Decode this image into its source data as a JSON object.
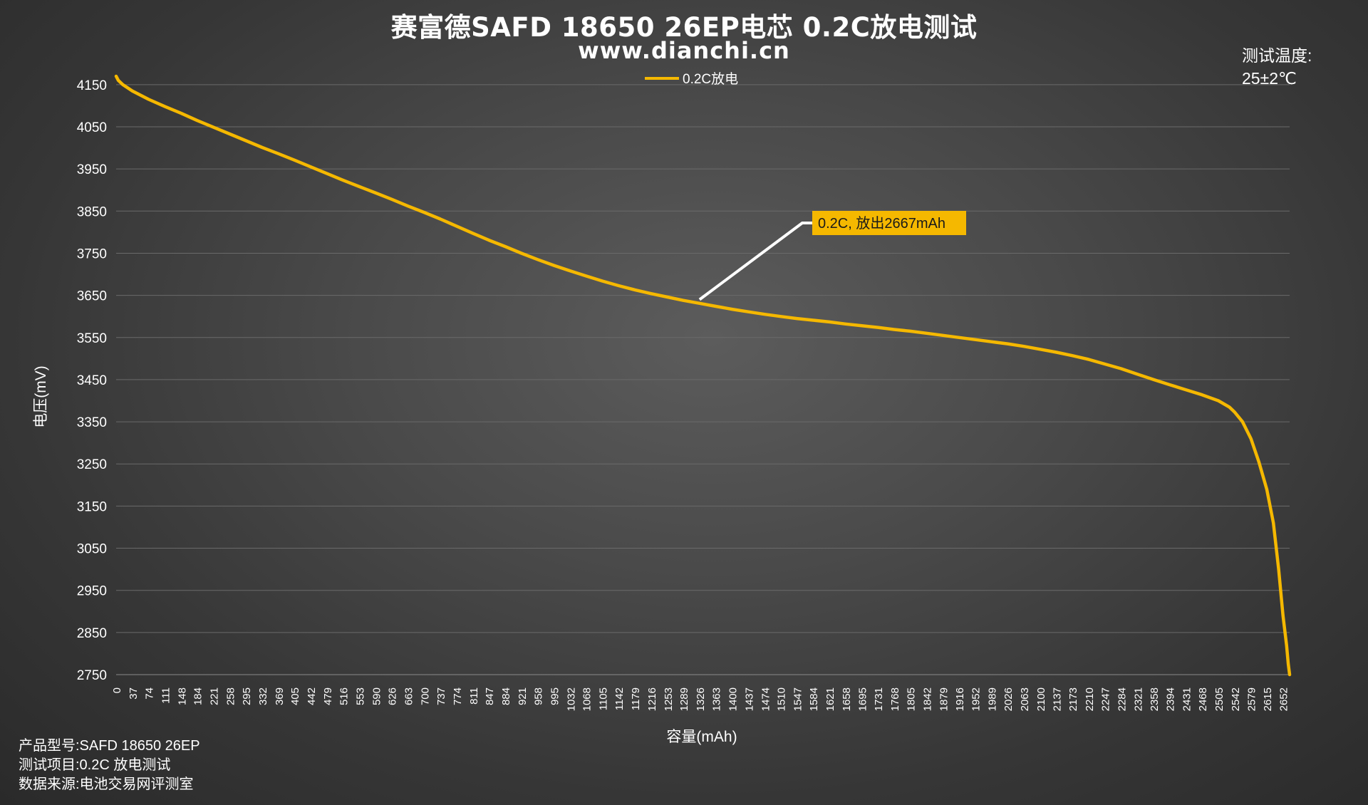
{
  "header": {
    "title": "赛富德SAFD 18650 26EP电芯 0.2C放电测试",
    "subtitle": "www.dianchi.cn"
  },
  "temperature": {
    "label": "测试温度:",
    "value": "25±2℃"
  },
  "footer": {
    "product": "产品型号:SAFD 18650 26EP",
    "item": "测试项目:0.2C 放电测试",
    "source": "数据来源:电池交易网评测室"
  },
  "colors": {
    "series": "#f5b800",
    "grid": "#6a6a6a",
    "leader": "#ffffff",
    "annotation_bg": "#f5b800",
    "annotation_text": "#1a1a1a"
  },
  "chart_data": {
    "type": "line",
    "xlabel": "容量(mAh)",
    "ylabel": "电压(mV)",
    "ylim": [
      2750,
      4170
    ],
    "xlim": [
      0,
      2667
    ],
    "grid": "horizontal",
    "legend": {
      "position": "top-center",
      "entries": [
        "0.2C放电"
      ]
    },
    "yticks": [
      2750,
      2850,
      2950,
      3050,
      3150,
      3250,
      3350,
      3450,
      3550,
      3650,
      3750,
      3850,
      3950,
      4050,
      4150
    ],
    "xticks": [
      0,
      37,
      74,
      111,
      148,
      184,
      221,
      258,
      295,
      332,
      369,
      405,
      442,
      479,
      516,
      553,
      590,
      626,
      663,
      700,
      737,
      774,
      811,
      847,
      884,
      921,
      958,
      995,
      1032,
      1068,
      1105,
      1142,
      1179,
      1216,
      1253,
      1289,
      1326,
      1363,
      1400,
      1437,
      1474,
      1510,
      1547,
      1584,
      1621,
      1658,
      1695,
      1731,
      1768,
      1805,
      1842,
      1879,
      1916,
      1952,
      1989,
      2026,
      2063,
      2100,
      2137,
      2173,
      2210,
      2247,
      2284,
      2321,
      2358,
      2394,
      2431,
      2468,
      2505,
      2542,
      2579,
      2615,
      2652
    ],
    "series": [
      {
        "name": "0.2C放电",
        "x": [
          0,
          5,
          15,
          37,
          74,
          111,
          148,
          184,
          221,
          258,
          295,
          332,
          369,
          405,
          442,
          479,
          516,
          553,
          590,
          626,
          663,
          700,
          737,
          774,
          811,
          847,
          884,
          921,
          958,
          995,
          1032,
          1068,
          1105,
          1142,
          1179,
          1216,
          1253,
          1289,
          1326,
          1363,
          1400,
          1437,
          1474,
          1510,
          1547,
          1584,
          1621,
          1658,
          1695,
          1731,
          1768,
          1805,
          1842,
          1879,
          1916,
          1952,
          1989,
          2026,
          2063,
          2100,
          2137,
          2173,
          2210,
          2247,
          2284,
          2321,
          2358,
          2394,
          2431,
          2468,
          2505,
          2530,
          2542,
          2560,
          2579,
          2597,
          2615,
          2630,
          2642,
          2652,
          2660,
          2664,
          2667
        ],
        "y": [
          4170,
          4160,
          4150,
          4135,
          4115,
          4098,
          4082,
          4065,
          4049,
          4033,
          4017,
          4001,
          3986,
          3971,
          3955,
          3939,
          3923,
          3908,
          3893,
          3878,
          3862,
          3847,
          3831,
          3814,
          3797,
          3781,
          3766,
          3750,
          3735,
          3721,
          3708,
          3696,
          3684,
          3673,
          3663,
          3654,
          3646,
          3638,
          3631,
          3624,
          3617,
          3611,
          3605,
          3600,
          3595,
          3591,
          3587,
          3582,
          3578,
          3574,
          3569,
          3565,
          3560,
          3555,
          3550,
          3545,
          3540,
          3535,
          3529,
          3522,
          3515,
          3507,
          3498,
          3487,
          3476,
          3463,
          3450,
          3438,
          3426,
          3414,
          3400,
          3385,
          3373,
          3350,
          3310,
          3255,
          3190,
          3110,
          3000,
          2890,
          2820,
          2775,
          2750
        ]
      }
    ],
    "annotations": [
      {
        "text": "0.2C, 放出2667mAh",
        "x": 1326,
        "y": 3640
      }
    ]
  }
}
